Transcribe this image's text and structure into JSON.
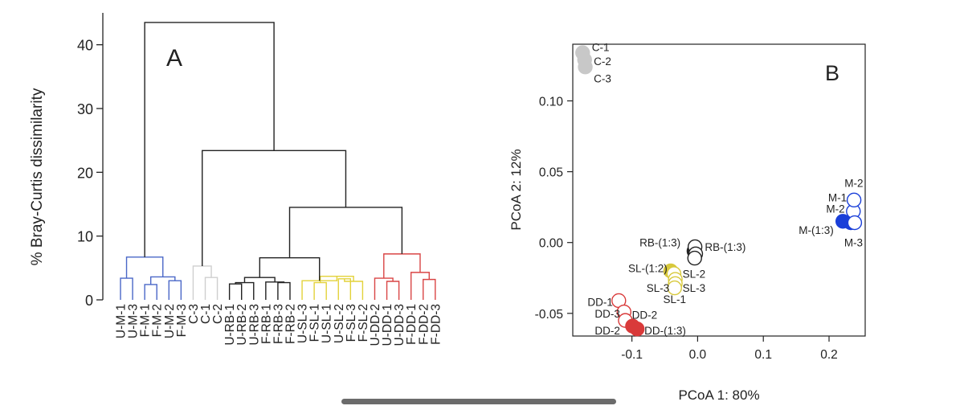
{
  "chart_data": [
    {
      "type": "dendrogram",
      "panel_label": "A",
      "ylabel": "% Bray-Curtis dissimilarity",
      "ylim": [
        0,
        45
      ],
      "yticks": [
        0,
        10,
        20,
        30,
        40
      ],
      "leaves": [
        {
          "label": "U-M-1",
          "group": "M"
        },
        {
          "label": "U-M-3",
          "group": "M"
        },
        {
          "label": "F-M-1",
          "group": "M"
        },
        {
          "label": "F-M-2",
          "group": "M"
        },
        {
          "label": "U-M-2",
          "group": "M"
        },
        {
          "label": "F-M-3",
          "group": "M"
        },
        {
          "label": "C-3",
          "group": "C"
        },
        {
          "label": "C-1",
          "group": "C"
        },
        {
          "label": "C-2",
          "group": "C"
        },
        {
          "label": "U-RB-1",
          "group": "RB"
        },
        {
          "label": "U-RB-2",
          "group": "RB"
        },
        {
          "label": "U-RB-3",
          "group": "RB"
        },
        {
          "label": "F-RB-1",
          "group": "RB"
        },
        {
          "label": "F-RB-3",
          "group": "RB"
        },
        {
          "label": "F-RB-2",
          "group": "RB"
        },
        {
          "label": "U-SL-3",
          "group": "SL"
        },
        {
          "label": "F-SL-1",
          "group": "SL"
        },
        {
          "label": "U-SL-1",
          "group": "SL"
        },
        {
          "label": "U-SL-2",
          "group": "SL"
        },
        {
          "label": "F-SL-3",
          "group": "SL"
        },
        {
          "label": "F-SL-2",
          "group": "SL"
        },
        {
          "label": "U-DD-2",
          "group": "DD"
        },
        {
          "label": "U-DD-1",
          "group": "DD"
        },
        {
          "label": "U-DD-3",
          "group": "DD"
        },
        {
          "label": "F-DD-1",
          "group": "DD"
        },
        {
          "label": "F-DD-2",
          "group": "DD"
        },
        {
          "label": "F-DD-3",
          "group": "DD"
        }
      ],
      "merges": [
        {
          "id": "m1",
          "a": 0,
          "b": 1,
          "height": 3.4
        },
        {
          "id": "m2",
          "a": 2,
          "b": 3,
          "height": 2.4
        },
        {
          "id": "m3",
          "a": 4,
          "b": 5,
          "height": 3.0
        },
        {
          "id": "m4",
          "a": "m2",
          "b": "m3",
          "height": 3.6
        },
        {
          "id": "mM",
          "a": "m1",
          "b": "m4",
          "height": 6.7
        },
        {
          "id": "c1",
          "a": 7,
          "b": 8,
          "height": 3.5
        },
        {
          "id": "mC",
          "a": 6,
          "b": "c1",
          "height": 5.3
        },
        {
          "id": "r1",
          "a": 9,
          "b": 10,
          "height": 2.5
        },
        {
          "id": "r2",
          "a": "r1",
          "b": 11,
          "height": 2.7
        },
        {
          "id": "r3",
          "a": 13,
          "b": 14,
          "height": 2.7
        },
        {
          "id": "r4",
          "a": 12,
          "b": "r3",
          "height": 2.8
        },
        {
          "id": "mRB",
          "a": "r2",
          "b": "r4",
          "height": 3.5
        },
        {
          "id": "s1",
          "a": 16,
          "b": 17,
          "height": 2.7
        },
        {
          "id": "s2",
          "a": 18,
          "b": 19,
          "height": 3.3
        },
        {
          "id": "s3",
          "a": "s2",
          "b": 20,
          "height": 2.9
        },
        {
          "id": "s4",
          "a": "s1",
          "b": "s3",
          "height": 3.7
        },
        {
          "id": "mSL",
          "a": 15,
          "b": "s4",
          "height": 3.0
        },
        {
          "id": "d1",
          "a": 22,
          "b": 23,
          "height": 2.9
        },
        {
          "id": "d2",
          "a": 21,
          "b": "d1",
          "height": 3.4
        },
        {
          "id": "d3",
          "a": 25,
          "b": 26,
          "height": 3.2
        },
        {
          "id": "d4",
          "a": 24,
          "b": "d3",
          "height": 4.3
        },
        {
          "id": "mDD",
          "a": "d2",
          "b": "d4",
          "height": 7.2
        },
        {
          "id": "k1",
          "a": "mRB",
          "b": "mSL",
          "height": 6.6
        },
        {
          "id": "k2",
          "a": "k1",
          "b": "mDD",
          "height": 14.5
        },
        {
          "id": "k3",
          "a": "mC",
          "b": "k2",
          "height": 23.4
        },
        {
          "id": "root",
          "a": "mM",
          "b": "k3",
          "height": 43.5
        }
      ],
      "group_colors": {
        "M": "#4a67c7",
        "C": "#cfcfcf",
        "RB": "#222222",
        "SL": "#e3d23a",
        "DD": "#d94545",
        "trunk": "#222222"
      }
    },
    {
      "type": "scatter",
      "panel_label": "B",
      "xlabel": "PCoA 1: 80%",
      "ylabel": "PCoA 2: 12%",
      "xlim": [
        -0.19,
        0.255
      ],
      "ylim": [
        -0.066,
        0.14
      ],
      "xticks": [
        -0.1,
        0.0,
        0.1,
        0.2
      ],
      "xtick_labels": [
        "-0.1",
        "0.0",
        "0.1",
        "0.2"
      ],
      "yticks": [
        -0.05,
        0.0,
        0.05,
        0.1
      ],
      "ytick_labels": [
        "-0.05",
        "0.00",
        "0.05",
        "0.10"
      ],
      "group_colors": {
        "C": "#c8c8c8",
        "RB": "#222222",
        "SL": "#d8c93c",
        "DD": "#d93a3a",
        "M": "#1a3fd9"
      },
      "points": [
        {
          "x": -0.175,
          "y": 0.134,
          "group": "C",
          "filled": true
        },
        {
          "x": -0.172,
          "y": 0.129,
          "group": "C",
          "filled": true
        },
        {
          "x": -0.171,
          "y": 0.124,
          "group": "C",
          "filled": true
        },
        {
          "x": -0.0055,
          "y": -0.006,
          "group": "RB",
          "filled": true
        },
        {
          "x": -0.004,
          "y": -0.003,
          "group": "RB",
          "filled": false
        },
        {
          "x": -0.003,
          "y": -0.008,
          "group": "RB",
          "filled": false
        },
        {
          "x": -0.0045,
          "y": -0.011,
          "group": "RB",
          "filled": false
        },
        {
          "x": -0.041,
          "y": -0.02,
          "group": "SL",
          "filled": true
        },
        {
          "x": -0.036,
          "y": -0.022,
          "group": "SL",
          "filled": false
        },
        {
          "x": -0.034,
          "y": -0.026,
          "group": "SL",
          "filled": false
        },
        {
          "x": -0.034,
          "y": -0.029,
          "group": "SL",
          "filled": false
        },
        {
          "x": -0.035,
          "y": -0.032,
          "group": "SL",
          "filled": false
        },
        {
          "x": -0.12,
          "y": -0.041,
          "group": "DD",
          "filled": false
        },
        {
          "x": -0.112,
          "y": -0.049,
          "group": "DD",
          "filled": false
        },
        {
          "x": -0.11,
          "y": -0.055,
          "group": "DD",
          "filled": false
        },
        {
          "x": -0.099,
          "y": -0.059,
          "group": "DD",
          "filled": true
        },
        {
          "x": -0.092,
          "y": -0.061,
          "group": "DD",
          "filled": true
        },
        {
          "x": 0.221,
          "y": 0.015,
          "group": "M",
          "filled": true
        },
        {
          "x": 0.233,
          "y": 0.014,
          "group": "M",
          "filled": true
        },
        {
          "x": 0.237,
          "y": 0.022,
          "group": "M",
          "filled": false
        },
        {
          "x": 0.238,
          "y": 0.03,
          "group": "M",
          "filled": false
        },
        {
          "x": 0.239,
          "y": 0.014,
          "group": "M",
          "filled": false
        }
      ],
      "annotations": [
        {
          "text": "C-1",
          "x": -0.161,
          "y": 0.138,
          "anchor": "start"
        },
        {
          "text": "C-2",
          "x": -0.158,
          "y": 0.128,
          "anchor": "start"
        },
        {
          "text": "C-3",
          "x": -0.158,
          "y": 0.116,
          "anchor": "start"
        },
        {
          "text": "RB-(1:3)",
          "x": -0.026,
          "y": 0.0,
          "anchor": "end"
        },
        {
          "text": "RB-(1:3)",
          "x": 0.011,
          "y": -0.003,
          "anchor": "start"
        },
        {
          "text": "SL-(1:2)",
          "x": -0.046,
          "y": -0.018,
          "anchor": "end"
        },
        {
          "text": "SL-2",
          "x": -0.023,
          "y": -0.022,
          "anchor": "start"
        },
        {
          "text": "SL-3",
          "x": -0.043,
          "y": -0.032,
          "anchor": "end"
        },
        {
          "text": "SL-3",
          "x": -0.023,
          "y": -0.032,
          "anchor": "start"
        },
        {
          "text": "SL-1",
          "x": -0.035,
          "y": -0.04,
          "anchor": "middle"
        },
        {
          "text": "DD-1",
          "x": -0.129,
          "y": -0.042,
          "anchor": "end"
        },
        {
          "text": "DD-3",
          "x": -0.118,
          "y": -0.05,
          "anchor": "end"
        },
        {
          "text": "DD-2",
          "x": -0.1,
          "y": -0.051,
          "anchor": "start"
        },
        {
          "text": "DD-2",
          "x": -0.118,
          "y": -0.062,
          "anchor": "end"
        },
        {
          "text": "DD-(1:3)",
          "x": -0.081,
          "y": -0.062,
          "anchor": "start"
        },
        {
          "text": "M-2",
          "x": 0.252,
          "y": 0.042,
          "anchor": "end"
        },
        {
          "text": "M-1",
          "x": 0.227,
          "y": 0.032,
          "anchor": "end"
        },
        {
          "text": "M-2",
          "x": 0.224,
          "y": 0.024,
          "anchor": "end"
        },
        {
          "text": "M-(1:3)",
          "x": 0.207,
          "y": 0.009,
          "anchor": "end"
        },
        {
          "text": "M-3",
          "x": 0.223,
          "y": 0.0,
          "anchor": "start"
        }
      ]
    }
  ]
}
